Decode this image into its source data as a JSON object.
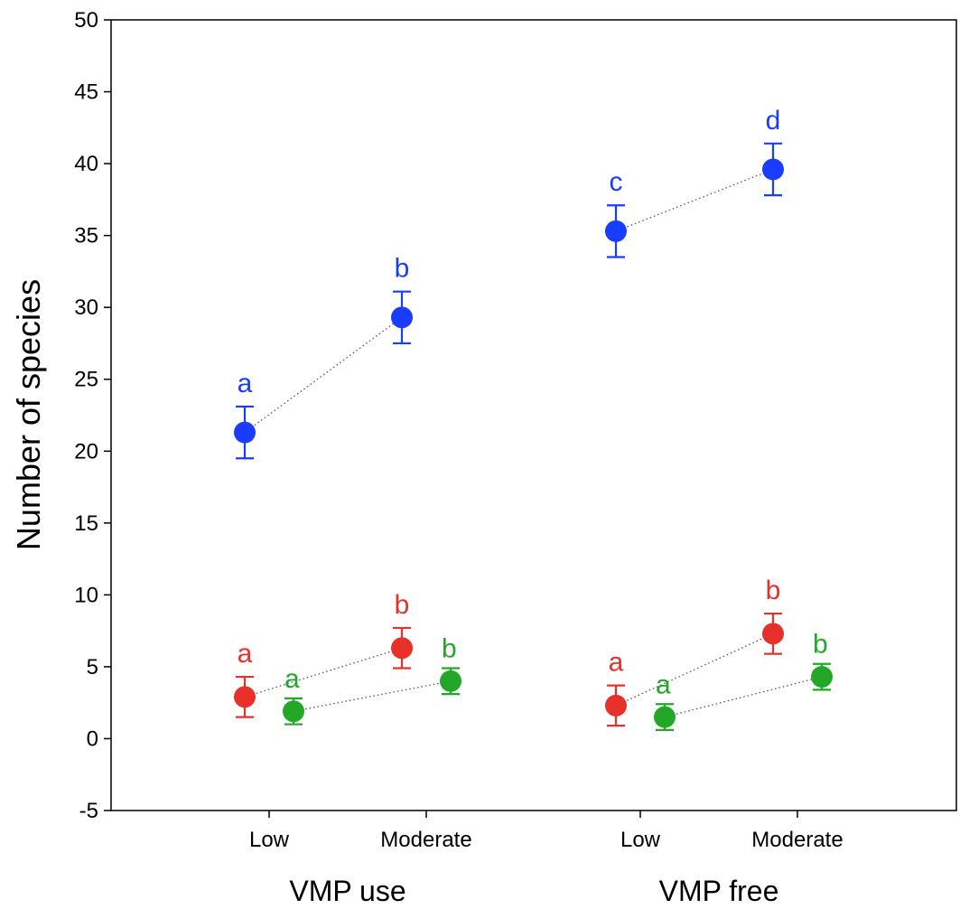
{
  "chart_data": {
    "type": "scatter",
    "ylabel": "Number of species",
    "ylim": [
      -5,
      50
    ],
    "yticks": [
      -5,
      0,
      5,
      10,
      15,
      20,
      25,
      30,
      35,
      40,
      45,
      50
    ],
    "grid": false,
    "groups": [
      {
        "label": "VMP use",
        "categories": [
          "Low",
          "Moderate"
        ]
      },
      {
        "label": "VMP free",
        "categories": [
          "Low",
          "Moderate"
        ]
      }
    ],
    "series": [
      {
        "color": "#1a3cff",
        "points": [
          {
            "group": 0,
            "category": 0,
            "y": 21.3,
            "err_low": 19.5,
            "err_high": 23.1,
            "letter": "a"
          },
          {
            "group": 0,
            "category": 1,
            "y": 29.3,
            "err_low": 27.5,
            "err_high": 31.1,
            "letter": "b"
          },
          {
            "group": 1,
            "category": 0,
            "y": 35.3,
            "err_low": 33.5,
            "err_high": 37.1,
            "letter": "c"
          },
          {
            "group": 1,
            "category": 1,
            "y": 39.6,
            "err_low": 37.8,
            "err_high": 41.4,
            "letter": "d"
          }
        ]
      },
      {
        "color": "#e8302a",
        "points": [
          {
            "group": 0,
            "category": 0,
            "y": 2.9,
            "err_low": 1.5,
            "err_high": 4.3,
            "letter": "a"
          },
          {
            "group": 0,
            "category": 1,
            "y": 6.3,
            "err_low": 4.9,
            "err_high": 7.7,
            "letter": "b"
          },
          {
            "group": 1,
            "category": 0,
            "y": 2.3,
            "err_low": 0.9,
            "err_high": 3.7,
            "letter": "a"
          },
          {
            "group": 1,
            "category": 1,
            "y": 7.3,
            "err_low": 5.9,
            "err_high": 8.7,
            "letter": "b"
          }
        ]
      },
      {
        "color": "#22a826",
        "points": [
          {
            "group": 0,
            "category": 0,
            "y": 1.9,
            "err_low": 1.0,
            "err_high": 2.8,
            "letter": "a"
          },
          {
            "group": 0,
            "category": 1,
            "y": 4.0,
            "err_low": 3.1,
            "err_high": 4.9,
            "letter": "b"
          },
          {
            "group": 1,
            "category": 0,
            "y": 1.5,
            "err_low": 0.6,
            "err_high": 2.4,
            "letter": "a"
          },
          {
            "group": 1,
            "category": 1,
            "y": 4.3,
            "err_low": 3.4,
            "err_high": 5.2,
            "letter": "b"
          }
        ]
      }
    ]
  }
}
